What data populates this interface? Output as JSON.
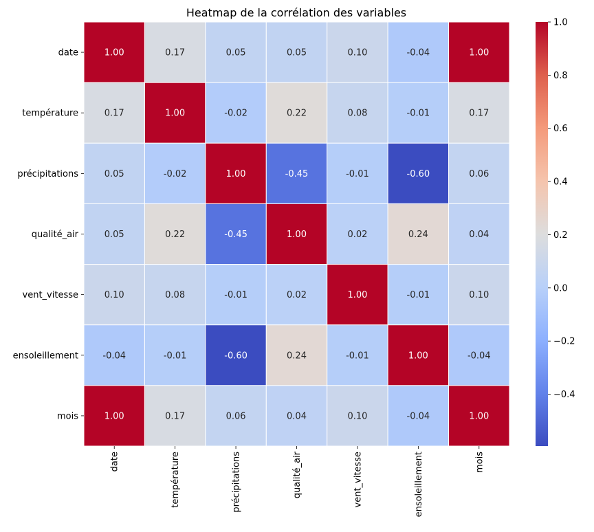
{
  "chart_data": {
    "type": "heatmap",
    "title": "Heatmap de la corrélation des variables",
    "colormap": "coolwarm",
    "annotated": true,
    "value_format": "0.00",
    "linecolor": "#ffffff",
    "row_labels": [
      "date",
      "température",
      "précipitations",
      "qualité_air",
      "vent_vitesse",
      "ensoleillement",
      "mois"
    ],
    "col_labels": [
      "date",
      "température",
      "précipitations",
      "qualité_air",
      "vent_vitesse",
      "ensoleillement",
      "mois"
    ],
    "values": [
      [
        1.0,
        0.17,
        0.05,
        0.05,
        0.1,
        -0.04,
        1.0
      ],
      [
        0.17,
        1.0,
        -0.02,
        0.22,
        0.08,
        -0.01,
        0.17
      ],
      [
        0.05,
        -0.02,
        1.0,
        -0.45,
        -0.01,
        -0.6,
        0.06
      ],
      [
        0.05,
        0.22,
        -0.45,
        1.0,
        0.02,
        0.24,
        0.04
      ],
      [
        0.1,
        0.08,
        -0.01,
        0.02,
        1.0,
        -0.01,
        0.1
      ],
      [
        -0.04,
        -0.01,
        -0.6,
        0.24,
        -0.01,
        1.0,
        -0.04
      ],
      [
        1.0,
        0.17,
        0.06,
        0.04,
        0.1,
        -0.04,
        1.0
      ]
    ],
    "colorbar": {
      "range": [
        -0.595,
        1.0
      ],
      "ticks": [
        1.0,
        0.8,
        0.6,
        0.4,
        0.2,
        0.0,
        -0.2,
        -0.4
      ],
      "tick_labels": [
        "1.0",
        "0.8",
        "0.6",
        "0.4",
        "0.2",
        "0.0",
        "−0.2",
        "−0.4"
      ]
    }
  }
}
